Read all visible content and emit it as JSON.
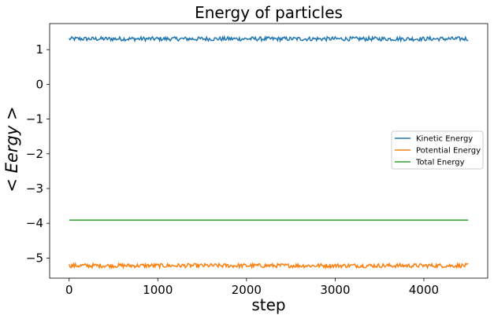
{
  "chart_data": {
    "type": "line",
    "title": "Energy of particles",
    "xlabel": "step",
    "ylabel": "< Eergy >",
    "xlim": [
      -220,
      4720
    ],
    "ylim": [
      -5.58,
      1.75
    ],
    "xticks": [
      0,
      1000,
      2000,
      3000,
      4000
    ],
    "xtick_labels": [
      "0",
      "1000",
      "2000",
      "3000",
      "4000"
    ],
    "yticks": [
      1,
      0,
      -1,
      -2,
      -3,
      -4,
      -5
    ],
    "ytick_labels": [
      "1",
      "0",
      "−1",
      "−2",
      "−3",
      "−4",
      "−5"
    ],
    "grid": false,
    "legend": "center-right",
    "series": [
      {
        "name": "Kinetic Energy",
        "color": "#1f77b4",
        "x_start": 0,
        "x_end": 4500,
        "mean": 1.31,
        "fluctuation": 0.05
      },
      {
        "name": "Potential Energy",
        "color": "#ff7f0e",
        "x_start": 0,
        "x_end": 4500,
        "mean": -5.22,
        "fluctuation": 0.05
      },
      {
        "name": "Total Energy",
        "color": "#2ca02c",
        "x_start": 0,
        "x_end": 4500,
        "mean": -3.91,
        "fluctuation": 0.0
      }
    ]
  }
}
